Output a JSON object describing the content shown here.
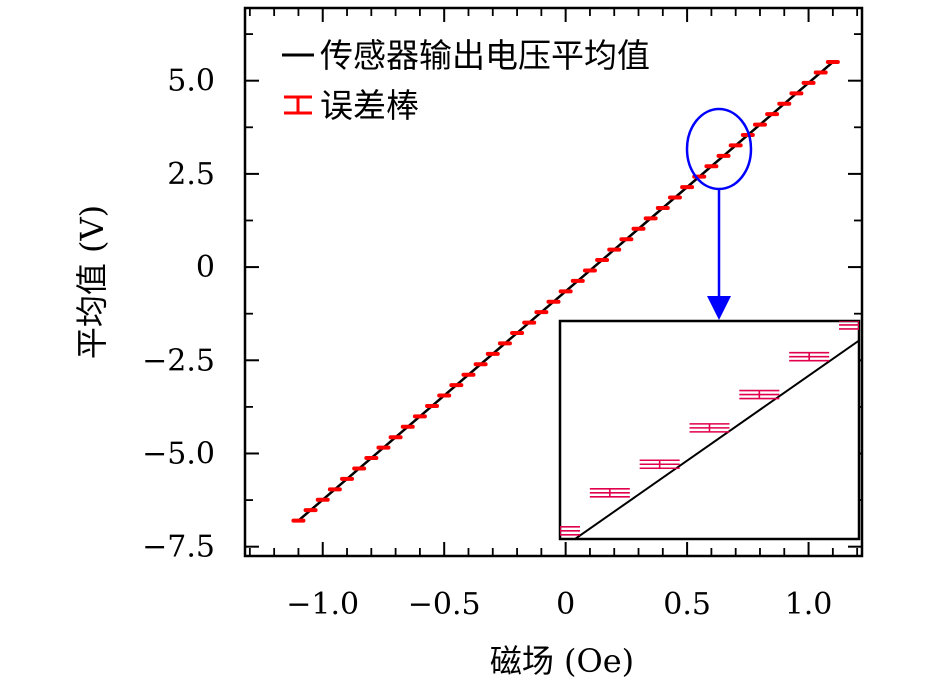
{
  "chart_data": {
    "type": "line",
    "title": "",
    "xlabel": "磁场 (Oe)",
    "ylabel": "平均值 (V)",
    "xlim": [
      -1.32,
      1.22
    ],
    "ylim": [
      -7.75,
      6.95
    ],
    "x_ticks": [
      -1.0,
      -0.5,
      0,
      0.5,
      1.0
    ],
    "x_tick_labels": [
      "−1.0",
      "−0.5",
      "0",
      "0.5",
      "1.0"
    ],
    "y_ticks": [
      5.0,
      2.5,
      0,
      -2.5,
      -5.0,
      -7.5
    ],
    "y_tick_labels": [
      "5.0",
      "2.5",
      "0",
      "−2.5",
      "−5.0",
      "−7.5"
    ],
    "legend": {
      "position": "top-left",
      "entries": [
        "传感器输出电压平均值",
        "误差棒"
      ]
    },
    "series": [
      {
        "name": "传感器输出电压平均值",
        "color": "#000000",
        "x_start": -1.1,
        "x_end": 1.1,
        "x_step": 0.05,
        "y_start": -6.8,
        "y_end": 5.5
      }
    ],
    "error_bar_color": "#ff0000",
    "inset": {
      "x_range": [
        0.62,
        0.74
      ],
      "y_range": [
        2.85,
        3.55
      ],
      "border_color": "#000000",
      "error_bar_color": "#e0004d"
    },
    "highlight": {
      "shape": "ellipse",
      "color": "#0000ff",
      "center_x": 0.655,
      "center_y": 3.1,
      "arrow": "points to inset"
    }
  }
}
